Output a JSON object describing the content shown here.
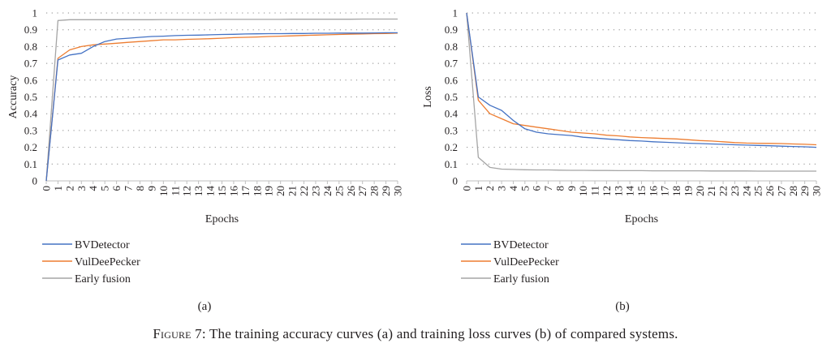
{
  "caption": {
    "label": "Figure 7:",
    "text": "The training accuracy curves (a) and training loss curves (b) of compared systems."
  },
  "colors": {
    "bvdetector": "#4472c4",
    "vuldeepecker": "#ed7d31",
    "early_fusion": "#a5a5a5"
  },
  "chart_data": [
    {
      "type": "line",
      "panel": "(a)",
      "xlabel": "Epochs",
      "ylabel": "Accuracy",
      "x": [
        0,
        1,
        2,
        3,
        4,
        5,
        6,
        7,
        8,
        9,
        10,
        11,
        12,
        13,
        14,
        15,
        16,
        17,
        18,
        19,
        20,
        21,
        22,
        23,
        24,
        25,
        26,
        27,
        28,
        29,
        30
      ],
      "xlim": [
        0,
        30
      ],
      "ylim": [
        0,
        1
      ],
      "yticks": [
        "0",
        "0.1",
        "0.2",
        "0.3",
        "0.4",
        "0.5",
        "0.6",
        "0.7",
        "0.8",
        "0.9",
        "1"
      ],
      "grid": "dotted horizontal",
      "legend_position": "bottom",
      "series": [
        {
          "name": "BVDetector",
          "color_key": "bvdetector",
          "values": [
            0,
            0.72,
            0.75,
            0.76,
            0.8,
            0.83,
            0.845,
            0.85,
            0.855,
            0.86,
            0.862,
            0.865,
            0.867,
            0.868,
            0.87,
            0.872,
            0.873,
            0.875,
            0.876,
            0.877,
            0.877,
            0.878,
            0.878,
            0.879,
            0.879,
            0.88,
            0.88,
            0.88,
            0.881,
            0.882,
            0.882
          ]
        },
        {
          "name": "VulDeePecker",
          "color_key": "vuldeepecker",
          "values": [
            0,
            0.73,
            0.78,
            0.8,
            0.81,
            0.815,
            0.82,
            0.825,
            0.83,
            0.835,
            0.84,
            0.84,
            0.843,
            0.845,
            0.847,
            0.85,
            0.853,
            0.855,
            0.857,
            0.86,
            0.862,
            0.864,
            0.866,
            0.868,
            0.87,
            0.872,
            0.874,
            0.875,
            0.877,
            0.878,
            0.88
          ]
        },
        {
          "name": "Early fusion",
          "color_key": "early_fusion",
          "values": [
            0,
            0.955,
            0.96,
            0.96,
            0.96,
            0.96,
            0.96,
            0.96,
            0.96,
            0.96,
            0.961,
            0.961,
            0.961,
            0.961,
            0.961,
            0.962,
            0.962,
            0.962,
            0.962,
            0.962,
            0.962,
            0.963,
            0.963,
            0.963,
            0.963,
            0.963,
            0.963,
            0.964,
            0.964,
            0.964,
            0.964
          ]
        }
      ]
    },
    {
      "type": "line",
      "panel": "(b)",
      "xlabel": "Epochs",
      "ylabel": "Loss",
      "x": [
        0,
        1,
        2,
        3,
        4,
        5,
        6,
        7,
        8,
        9,
        10,
        11,
        12,
        13,
        14,
        15,
        16,
        17,
        18,
        19,
        20,
        21,
        22,
        23,
        24,
        25,
        26,
        27,
        28,
        29,
        30
      ],
      "xlim": [
        0,
        30
      ],
      "ylim": [
        0,
        1
      ],
      "yticks": [
        "0",
        "0.1",
        "0.2",
        "0.3",
        "0.4",
        "0.5",
        "0.6",
        "0.7",
        "0.8",
        "0.9",
        "1"
      ],
      "grid": "dotted horizontal",
      "legend_position": "bottom",
      "series": [
        {
          "name": "BVDetector",
          "color_key": "bvdetector",
          "values": [
            1,
            0.5,
            0.45,
            0.42,
            0.36,
            0.31,
            0.29,
            0.28,
            0.275,
            0.27,
            0.26,
            0.255,
            0.25,
            0.245,
            0.24,
            0.237,
            0.233,
            0.23,
            0.227,
            0.224,
            0.222,
            0.22,
            0.218,
            0.215,
            0.213,
            0.211,
            0.209,
            0.207,
            0.205,
            0.203,
            0.2
          ]
        },
        {
          "name": "VulDeePecker",
          "color_key": "vuldeepecker",
          "values": [
            1,
            0.48,
            0.4,
            0.37,
            0.34,
            0.33,
            0.32,
            0.31,
            0.3,
            0.29,
            0.285,
            0.28,
            0.272,
            0.268,
            0.262,
            0.258,
            0.255,
            0.252,
            0.25,
            0.245,
            0.24,
            0.237,
            0.233,
            0.228,
            0.225,
            0.224,
            0.223,
            0.222,
            0.22,
            0.218,
            0.215
          ]
        },
        {
          "name": "Early fusion",
          "color_key": "early_fusion",
          "values": [
            1,
            0.14,
            0.08,
            0.07,
            0.068,
            0.066,
            0.065,
            0.065,
            0.064,
            0.063,
            0.063,
            0.062,
            0.062,
            0.061,
            0.061,
            0.061,
            0.06,
            0.06,
            0.06,
            0.06,
            0.06,
            0.059,
            0.059,
            0.059,
            0.059,
            0.058,
            0.058,
            0.058,
            0.058,
            0.058,
            0.058
          ]
        }
      ]
    }
  ]
}
